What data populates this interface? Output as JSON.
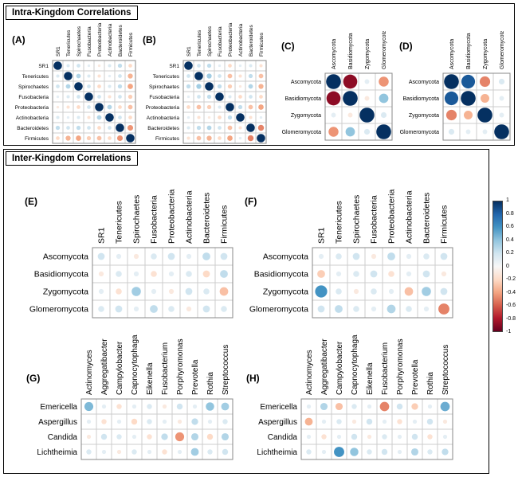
{
  "sections": {
    "intra": {
      "title": "Intra-Kingdom Correlations"
    },
    "inter": {
      "title": "Inter-Kingdom Correlations"
    }
  },
  "colorbar": {
    "min": -1,
    "max": 1,
    "ticks": [
      "1",
      "0.8",
      "0.6",
      "0.4",
      "0.2",
      "0",
      "-0.2",
      "-0.4",
      "-0.6",
      "-0.8",
      "-1"
    ],
    "palette": [
      "#053061",
      "#2166AC",
      "#4393C3",
      "#92C5DE",
      "#D1E5F0",
      "#F7F7F7",
      "#FDDBC7",
      "#F4A582",
      "#D6604D",
      "#B2182B",
      "#67001F"
    ]
  },
  "chart_data": [
    {
      "panel": "A",
      "panel_label": "(A)",
      "type": "heatmap",
      "glyph": "circle",
      "section": "Intra-Kingdom Correlations",
      "value_range": [
        -1,
        1
      ],
      "rows": [
        "SR1",
        "Tenericutes",
        "Spirochaetes",
        "Fusobacteria",
        "Proteobacteria",
        "Actinobacteria",
        "Bacteroidetes",
        "Firmicutes"
      ],
      "cols": [
        "SR1",
        "Tenericutes",
        "Spirochaetes",
        "Fusobacteria",
        "Proteobacteria",
        "Actinobacteria",
        "Bacteroidetes",
        "Firmicutes"
      ],
      "values": [
        [
          1.0,
          0.15,
          0.2,
          0.1,
          -0.1,
          0.15,
          0.25,
          -0.2
        ],
        [
          0.15,
          1.0,
          0.3,
          0.15,
          -0.15,
          0.1,
          0.2,
          -0.35
        ],
        [
          0.2,
          0.3,
          1.0,
          0.2,
          -0.2,
          0.15,
          0.25,
          -0.4
        ],
        [
          0.1,
          0.15,
          0.2,
          1.0,
          0.2,
          -0.15,
          0.2,
          -0.25
        ],
        [
          -0.1,
          -0.15,
          -0.2,
          0.2,
          1.0,
          0.3,
          -0.2,
          -0.3
        ],
        [
          0.15,
          0.1,
          0.15,
          -0.15,
          0.3,
          1.0,
          0.2,
          -0.2
        ],
        [
          0.25,
          0.2,
          0.25,
          0.2,
          -0.2,
          0.2,
          1.0,
          -0.45
        ],
        [
          -0.2,
          -0.35,
          -0.4,
          -0.25,
          -0.3,
          -0.2,
          -0.45,
          1.0
        ]
      ]
    },
    {
      "panel": "B",
      "panel_label": "(B)",
      "type": "heatmap",
      "glyph": "circle",
      "section": "Intra-Kingdom Correlations",
      "value_range": [
        -1,
        1
      ],
      "rows": [
        "SR1",
        "Tenericutes",
        "Spirochaetes",
        "Fusobacteria",
        "Proteobacteria",
        "Actinobacteria",
        "Bacteroidetes",
        "Firmicutes"
      ],
      "cols": [
        "SR1",
        "Tenericutes",
        "Spirochaetes",
        "Fusobacteria",
        "Proteobacteria",
        "Actinobacteria",
        "Bacteroidetes",
        "Firmicutes"
      ],
      "values": [
        [
          1.0,
          0.2,
          0.25,
          0.1,
          -0.2,
          0.1,
          0.15,
          -0.15
        ],
        [
          0.2,
          1.0,
          0.35,
          0.2,
          -0.3,
          -0.15,
          0.25,
          -0.3
        ],
        [
          0.25,
          0.35,
          1.0,
          0.25,
          -0.25,
          -0.1,
          0.3,
          -0.35
        ],
        [
          0.1,
          0.2,
          0.25,
          1.0,
          0.15,
          -0.2,
          0.2,
          -0.2
        ],
        [
          -0.2,
          -0.3,
          -0.25,
          0.15,
          1.0,
          0.25,
          -0.3,
          -0.4
        ],
        [
          0.1,
          -0.15,
          -0.1,
          -0.2,
          0.25,
          1.0,
          -0.15,
          0.1
        ],
        [
          0.15,
          0.25,
          0.3,
          0.2,
          -0.3,
          -0.15,
          1.0,
          -0.5
        ],
        [
          -0.15,
          -0.3,
          -0.35,
          -0.2,
          -0.4,
          0.1,
          -0.5,
          1.0
        ]
      ]
    },
    {
      "panel": "C",
      "panel_label": "(C)",
      "type": "heatmap",
      "glyph": "circle",
      "section": "Intra-Kingdom Correlations",
      "value_range": [
        -1,
        1
      ],
      "rows": [
        "Ascomycota",
        "Basidiomycota",
        "Zygomycota",
        "Glomeromycota"
      ],
      "cols": [
        "Ascomycota",
        "Basidiomycota",
        "Zygomycota",
        "Glomeromycota"
      ],
      "values": [
        [
          1.0,
          -0.9,
          0.1,
          -0.45
        ],
        [
          -0.9,
          1.0,
          -0.1,
          0.4
        ],
        [
          0.1,
          -0.1,
          1.0,
          0.15
        ],
        [
          -0.45,
          0.4,
          0.15,
          1.0
        ]
      ]
    },
    {
      "panel": "D",
      "panel_label": "(D)",
      "type": "heatmap",
      "glyph": "circle",
      "section": "Intra-Kingdom Correlations",
      "value_range": [
        -1,
        1
      ],
      "rows": [
        "Ascomycota",
        "Basidiomycota",
        "Zygomycota",
        "Glomeromycota"
      ],
      "cols": [
        "Ascomycota",
        "Basidiomycota",
        "Zygomycota",
        "Glomeromycota"
      ],
      "values": [
        [
          1.0,
          0.85,
          -0.5,
          0.15
        ],
        [
          0.85,
          1.0,
          -0.35,
          0.1
        ],
        [
          -0.5,
          -0.35,
          1.0,
          0.1
        ],
        [
          0.15,
          0.1,
          0.1,
          1.0
        ]
      ]
    },
    {
      "panel": "E",
      "panel_label": "(E)",
      "type": "heatmap",
      "glyph": "circle",
      "section": "Inter-Kingdom Correlations",
      "value_range": [
        -1,
        1
      ],
      "rows": [
        "Ascomycota",
        "Basidiomycota",
        "Zygomycota",
        "Glomeromycota"
      ],
      "cols": [
        "SR1",
        "Tenericutes",
        "Spirochaetes",
        "Fusobacteria",
        "Proteobacteria",
        "Actinobacteria",
        "Bacteroidetes",
        "Firmicutes"
      ],
      "values": [
        [
          0.2,
          0.1,
          -0.1,
          0.15,
          0.2,
          0.1,
          0.25,
          0.2
        ],
        [
          -0.1,
          0.15,
          0.1,
          -0.15,
          0.1,
          0.15,
          -0.2,
          0.25
        ],
        [
          0.1,
          -0.15,
          0.35,
          0.1,
          -0.1,
          0.2,
          0.15,
          -0.3
        ],
        [
          0.15,
          0.2,
          0.1,
          0.25,
          0.15,
          -0.1,
          0.2,
          0.15
        ]
      ]
    },
    {
      "panel": "F",
      "panel_label": "(F)",
      "type": "heatmap",
      "glyph": "circle",
      "section": "Inter-Kingdom Correlations",
      "value_range": [
        -1,
        1
      ],
      "rows": [
        "Ascomycota",
        "Basidiomycota",
        "Zygomycota",
        "Glomeromycota"
      ],
      "cols": [
        "SR1",
        "Tenericutes",
        "Spirochaetes",
        "Fusobacteria",
        "Proteobacteria",
        "Actinobacteria",
        "Bacteroidetes",
        "Firmicutes"
      ],
      "values": [
        [
          0.1,
          0.15,
          0.2,
          -0.1,
          0.25,
          0.1,
          0.15,
          0.2
        ],
        [
          -0.25,
          0.1,
          0.15,
          0.2,
          -0.15,
          0.1,
          0.2,
          -0.1
        ],
        [
          0.6,
          0.15,
          -0.1,
          0.15,
          0.1,
          -0.3,
          0.35,
          0.2
        ],
        [
          0.2,
          0.25,
          0.15,
          0.1,
          0.3,
          0.15,
          0.1,
          -0.5
        ]
      ]
    },
    {
      "panel": "G",
      "panel_label": "(G)",
      "type": "heatmap",
      "glyph": "circle",
      "section": "Inter-Kingdom Correlations",
      "value_range": [
        -1,
        1
      ],
      "rows": [
        "Emericella",
        "Aspergillus",
        "Candida",
        "Lichtheimia"
      ],
      "cols": [
        "Actinomyces",
        "Aggregatibacter",
        "Campylobacter",
        "Capnocytophaga",
        "Eikenella",
        "Fusobacterium",
        "Porphyromonas",
        "Prevotella",
        "Rothia",
        "Streptococcus"
      ],
      "values": [
        [
          0.45,
          0.1,
          -0.15,
          0.1,
          0.15,
          -0.1,
          0.2,
          0.1,
          0.4,
          0.35
        ],
        [
          0.1,
          -0.15,
          0.1,
          -0.2,
          0.15,
          0.1,
          -0.1,
          0.25,
          0.1,
          0.15
        ],
        [
          -0.1,
          0.2,
          0.15,
          0.1,
          -0.15,
          0.25,
          -0.45,
          0.3,
          -0.2,
          0.3
        ],
        [
          0.15,
          0.1,
          -0.1,
          0.15,
          0.1,
          -0.15,
          0.1,
          0.35,
          0.15,
          0.2
        ]
      ]
    },
    {
      "panel": "H",
      "panel_label": "(H)",
      "type": "heatmap",
      "glyph": "circle",
      "section": "Inter-Kingdom Correlations",
      "value_range": [
        -1,
        1
      ],
      "rows": [
        "Emericella",
        "Aspergillus",
        "Candida",
        "Lichtheimia"
      ],
      "cols": [
        "Actinomyces",
        "Aggregatibacter",
        "Campylobacter",
        "Capnocytophaga",
        "Eikenella",
        "Fusobacterium",
        "Porphyromonas",
        "Prevotella",
        "Rothia",
        "Streptococcus"
      ],
      "values": [
        [
          0.1,
          0.3,
          -0.3,
          0.15,
          0.1,
          -0.5,
          0.2,
          -0.25,
          0.1,
          0.5
        ],
        [
          -0.35,
          0.1,
          0.15,
          -0.1,
          0.2,
          0.1,
          -0.15,
          0.1,
          0.2,
          -0.1
        ],
        [
          0.1,
          -0.15,
          0.1,
          0.2,
          -0.1,
          0.15,
          0.1,
          0.2,
          -0.15,
          0.1
        ],
        [
          0.15,
          0.1,
          0.6,
          0.4,
          0.15,
          0.2,
          0.1,
          0.3,
          0.15,
          0.25
        ]
      ]
    }
  ]
}
